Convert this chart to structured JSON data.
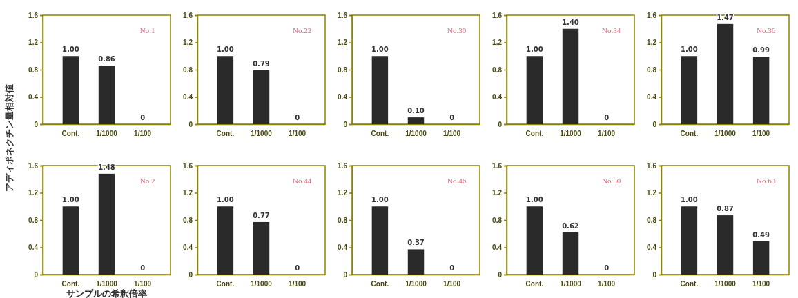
{
  "chart_data": [
    {
      "type": "bar",
      "title": "No.1",
      "ylabel": "アディポネクチン量相対値",
      "categories": [
        "Cont.",
        "1/1000",
        "1/100"
      ],
      "values": [
        1.0,
        0.86,
        0
      ],
      "value_labels": [
        "1.00",
        "0.86",
        "0"
      ],
      "color": "#2a2a2a",
      "ylim": [
        0,
        1.6
      ],
      "yticks": [
        0,
        0.4,
        0.8,
        1.2,
        1.6
      ]
    },
    {
      "type": "bar",
      "title": "No.22",
      "categories": [
        "Cont.",
        "1/1000",
        "1/100"
      ],
      "values": [
        1.0,
        0.79,
        0
      ],
      "value_labels": [
        "1.00",
        "0.79",
        "0"
      ],
      "color": "#2a2a2a",
      "ylim": [
        0,
        1.6
      ],
      "yticks": [
        0,
        0.4,
        0.8,
        1.2,
        1.6
      ]
    },
    {
      "type": "bar",
      "title": "No.30",
      "categories": [
        "Cont.",
        "1/1000",
        "1/100"
      ],
      "values": [
        1.0,
        0.1,
        0
      ],
      "value_labels": [
        "1.00",
        "0.10",
        "0"
      ],
      "color": "#2a2a2a",
      "ylim": [
        0,
        1.6
      ],
      "yticks": [
        0,
        0.4,
        0.8,
        1.2,
        1.6
      ]
    },
    {
      "type": "bar",
      "title": "No.34",
      "categories": [
        "Cont.",
        "1/1000",
        "1/100"
      ],
      "values": [
        1.0,
        1.4,
        0
      ],
      "value_labels": [
        "1.00",
        "1.40",
        "0"
      ],
      "color": "#2a2a2a",
      "ylim": [
        0,
        1.6
      ],
      "yticks": [
        0,
        0.4,
        0.8,
        1.2,
        1.6
      ]
    },
    {
      "type": "bar",
      "title": "No.36",
      "categories": [
        "Cont.",
        "1/1000",
        "1/100"
      ],
      "values": [
        1.0,
        1.47,
        0.99
      ],
      "value_labels": [
        "1.00",
        "1.47",
        "0.99"
      ],
      "color": "#2a2a2a",
      "ylim": [
        0,
        1.6
      ],
      "yticks": [
        0,
        0.4,
        0.8,
        1.2,
        1.6
      ]
    },
    {
      "type": "bar",
      "title": "No.2",
      "xlabel": "サンプルの希釈倍率",
      "categories": [
        "Cont.",
        "1/1000",
        "1/100"
      ],
      "values": [
        1.0,
        1.48,
        0
      ],
      "value_labels": [
        "1.00",
        "1.48",
        "0"
      ],
      "color": "#2a2a2a",
      "ylim": [
        0,
        1.6
      ],
      "yticks": [
        0,
        0.4,
        0.8,
        1.2,
        1.6
      ]
    },
    {
      "type": "bar",
      "title": "No.44",
      "categories": [
        "Cont.",
        "1/1000",
        "1/100"
      ],
      "values": [
        1.0,
        0.77,
        0
      ],
      "value_labels": [
        "1.00",
        "0.77",
        "0"
      ],
      "color": "#2a2a2a",
      "ylim": [
        0,
        1.6
      ],
      "yticks": [
        0,
        0.4,
        0.8,
        1.2,
        1.6
      ]
    },
    {
      "type": "bar",
      "title": "No.46",
      "categories": [
        "Cont.",
        "1/1000",
        "1/100"
      ],
      "values": [
        1.0,
        0.37,
        0
      ],
      "value_labels": [
        "1.00",
        "0.37",
        "0"
      ],
      "color": "#2a2a2a",
      "ylim": [
        0,
        1.6
      ],
      "yticks": [
        0,
        0.4,
        0.8,
        1.2,
        1.6
      ]
    },
    {
      "type": "bar",
      "title": "No.50",
      "categories": [
        "Cont.",
        "1/1000",
        "1/100"
      ],
      "values": [
        1.0,
        0.62,
        0
      ],
      "value_labels": [
        "1.00",
        "0.62",
        "0"
      ],
      "color": "#2a2a2a",
      "ylim": [
        0,
        1.6
      ],
      "yticks": [
        0,
        0.4,
        0.8,
        1.2,
        1.6
      ]
    },
    {
      "type": "bar",
      "title": "No.63",
      "categories": [
        "Cont.",
        "1/1000",
        "1/100"
      ],
      "values": [
        1.0,
        0.87,
        0.49
      ],
      "value_labels": [
        "1.00",
        "0.87",
        "0.49"
      ],
      "color": "#2a2a2a",
      "ylim": [
        0,
        1.6
      ],
      "yticks": [
        0,
        0.4,
        0.8,
        1.2,
        1.6
      ]
    }
  ]
}
